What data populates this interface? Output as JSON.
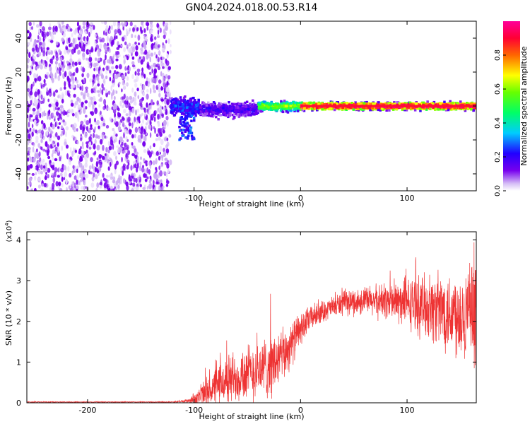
{
  "title": "GN04.2024.018.00.53.R14",
  "colors": {
    "snr_line": "#ee3333",
    "scatter_purple": "#7700ee",
    "scatter_light": "#c9a6f3",
    "frame": "#000000"
  },
  "chart_data": [
    {
      "type": "heatmap",
      "xlabel": "Height of straight line (km)",
      "ylabel": "Frequency (Hz)",
      "xlim": [
        -257,
        165
      ],
      "ylim": [
        -50,
        50
      ],
      "xticks": [
        -200,
        -100,
        0,
        100
      ],
      "yticks": [
        -40,
        -20,
        0,
        20,
        40
      ],
      "colorbar": {
        "label": "Normalized spectral amplitude",
        "range": [
          0.0,
          1.0
        ],
        "ticks": [
          0.0,
          0.2,
          0.4,
          0.6,
          0.8
        ],
        "colormap": "rainbow (white-purple-blue-cyan-green-yellow-red-magenta)"
      },
      "regions": [
        {
          "x_range": [
            -257,
            -122
          ],
          "freq_range": [
            -50,
            50
          ],
          "amplitude": 0.05,
          "pattern": "broadband noise"
        },
        {
          "x_range": [
            -122,
            -95
          ],
          "freq_center": 0,
          "freq_halfwidth": 8,
          "amplitude": 0.2,
          "extra_dip_to_freq": -20
        },
        {
          "x_range": [
            -95,
            -40
          ],
          "freq_center": -2,
          "freq_halfwidth": 6,
          "amplitude": 0.15
        },
        {
          "x_range": [
            -40,
            0
          ],
          "freq_center": 0,
          "freq_halfwidth": 4,
          "amplitude": 0.5
        },
        {
          "x_range": [
            0,
            165
          ],
          "freq_center": 0,
          "freq_halfwidth": 3,
          "amplitude": 0.85
        }
      ]
    },
    {
      "type": "line",
      "xlabel": "Height of straight line (km)",
      "ylabel": "SNR (10 * v/v)",
      "y_multiplier": "(x10^4)",
      "xlim": [
        -257,
        165
      ],
      "ylim": [
        0,
        4.2
      ],
      "xticks": [
        -200,
        -100,
        0,
        100
      ],
      "yticks": [
        0,
        1,
        2,
        3,
        4
      ],
      "envelope": {
        "x": [
          -257,
          -120,
          -105,
          -95,
          -85,
          -70,
          -55,
          -40,
          -25,
          -15,
          -5,
          0,
          10,
          25,
          40,
          60,
          80,
          100,
          120,
          140,
          150,
          160,
          165
        ],
        "y_mid": [
          0.02,
          0.02,
          0.05,
          0.15,
          0.3,
          0.55,
          0.7,
          0.8,
          0.95,
          1.2,
          1.6,
          1.8,
          2.1,
          2.3,
          2.45,
          2.5,
          2.5,
          2.45,
          2.35,
          2.25,
          2.2,
          2.15,
          2.1
        ],
        "y_spread": [
          0.01,
          0.01,
          0.05,
          0.3,
          0.4,
          0.6,
          0.7,
          0.7,
          0.8,
          0.6,
          0.5,
          0.4,
          0.3,
          0.25,
          0.3,
          0.35,
          0.45,
          0.6,
          0.8,
          1.0,
          1.1,
          1.2,
          1.2
        ]
      }
    }
  ]
}
